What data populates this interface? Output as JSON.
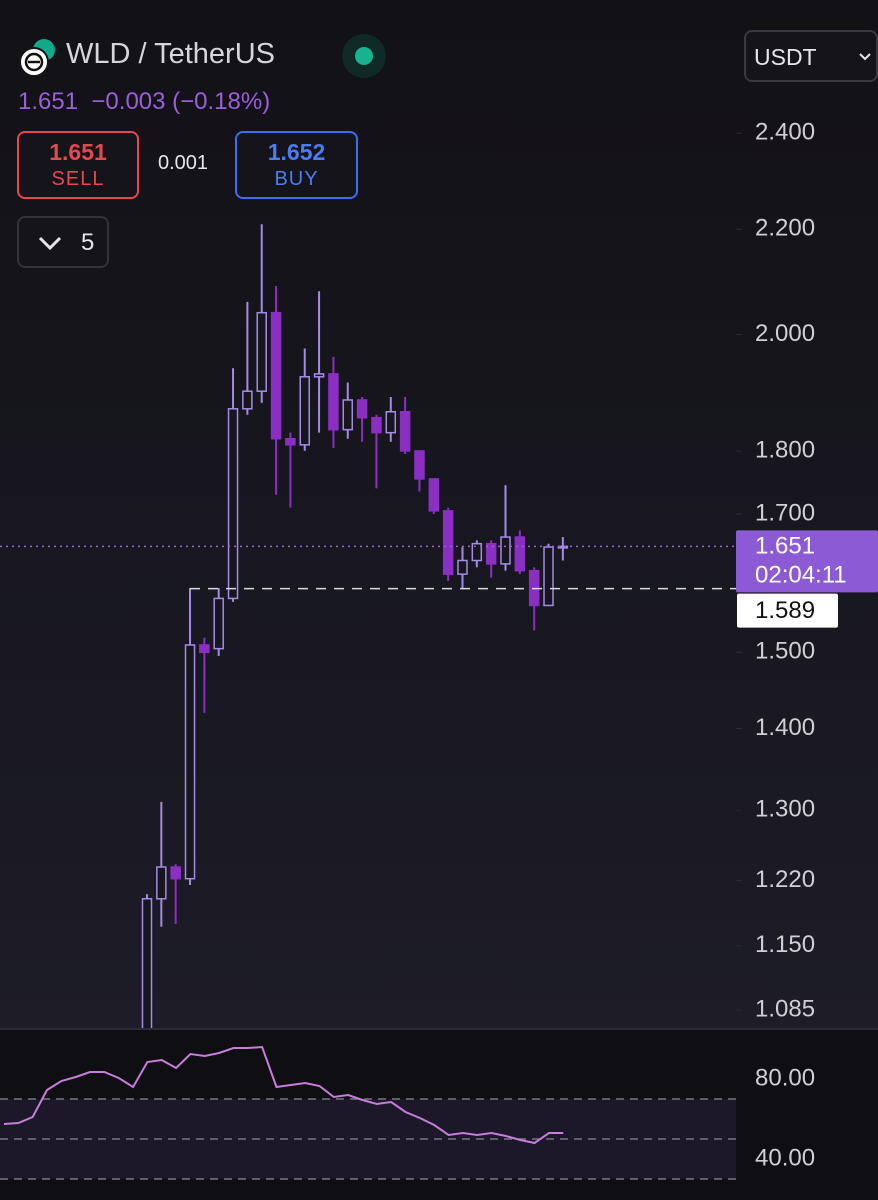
{
  "header": {
    "symbol": "WLD / TetherUS",
    "last_price": "1.651",
    "change": "−0.003",
    "change_pct": "(−0.18%)",
    "sell_price": "1.651",
    "sell_label": "SELL",
    "spread": "0.001",
    "buy_price": "1.652",
    "buy_label": "BUY",
    "indicator_count": "5",
    "currency": "USDT"
  },
  "chart_data": [
    {
      "type": "candlestick",
      "log_scale": true,
      "up_color": "#a58be8",
      "down_color": "#8b2fc4",
      "open": [
        1.04,
        1.2,
        1.235,
        1.222,
        1.51,
        1.505,
        1.575,
        1.87,
        1.9,
        2.04,
        1.82,
        1.81,
        1.925,
        1.93,
        1.835,
        1.885,
        1.855,
        1.83,
        1.865,
        1.8,
        1.755,
        1.705,
        1.61,
        1.63,
        1.655,
        1.625,
        1.665,
        1.615,
        1.565,
        1.651
      ],
      "high": [
        1.205,
        1.31,
        1.238,
        1.59,
        1.52,
        1.59,
        1.94,
        2.06,
        2.21,
        2.09,
        1.83,
        1.975,
        2.08,
        1.96,
        1.915,
        1.89,
        1.86,
        1.89,
        1.89,
        1.8,
        1.755,
        1.71,
        1.65,
        1.66,
        1.66,
        1.745,
        1.675,
        1.62,
        1.655,
        1.665
      ],
      "low": [
        1.03,
        1.17,
        1.173,
        1.215,
        1.42,
        1.495,
        1.57,
        1.86,
        1.88,
        1.73,
        1.71,
        1.8,
        1.83,
        1.805,
        1.82,
        1.815,
        1.74,
        1.815,
        1.795,
        1.735,
        1.7,
        1.6,
        1.59,
        1.62,
        1.605,
        1.615,
        1.61,
        1.53,
        1.565,
        1.63
      ],
      "close": [
        1.2,
        1.235,
        1.222,
        1.51,
        1.5,
        1.575,
        1.87,
        1.9,
        2.04,
        1.82,
        1.81,
        1.925,
        1.93,
        1.835,
        1.885,
        1.855,
        1.83,
        1.865,
        1.8,
        1.755,
        1.705,
        1.61,
        1.63,
        1.655,
        1.625,
        1.665,
        1.615,
        1.565,
        1.65,
        1.651
      ],
      "ylim": [
        1.0675,
        2.659
      ],
      "yticks": [
        {
          "value": 2.4,
          "label": "2.400"
        },
        {
          "value": 2.2,
          "label": "2.200"
        },
        {
          "value": 2.0,
          "label": "2.000"
        },
        {
          "value": 1.8,
          "label": "1.800"
        },
        {
          "value": 1.7,
          "label": "1.700"
        },
        {
          "value": 1.5,
          "label": "1.500"
        },
        {
          "value": 1.4,
          "label": "1.400"
        },
        {
          "value": 1.3,
          "label": "1.300"
        },
        {
          "value": 1.22,
          "label": "1.220"
        },
        {
          "value": 1.15,
          "label": "1.150"
        },
        {
          "value": 1.085,
          "label": "1.085"
        }
      ],
      "last_price": {
        "value": 1.651,
        "label": "1.651"
      },
      "countdown": "02:04:11",
      "level_line": {
        "value": 1.589,
        "label": "1.589"
      }
    },
    {
      "type": "line",
      "color": "#c77ddb",
      "values": [
        57.5,
        58,
        61,
        74.5,
        79,
        81,
        83.5,
        83.5,
        80.5,
        76,
        88.5,
        89.5,
        85.5,
        92.5,
        91.5,
        93,
        95.5,
        95.5,
        96,
        76,
        77,
        78,
        76.5,
        71,
        72,
        69.5,
        67.5,
        68.5,
        63.5,
        60.5,
        57,
        52,
        53,
        52,
        53,
        51.5,
        49.5,
        48,
        53,
        53
      ],
      "ylim": [
        19.5,
        104.5
      ],
      "yticks": [
        {
          "value": 80,
          "label": "80.00"
        },
        {
          "value": 40,
          "label": "40.00"
        }
      ],
      "levels": [
        70,
        50,
        30
      ]
    }
  ]
}
